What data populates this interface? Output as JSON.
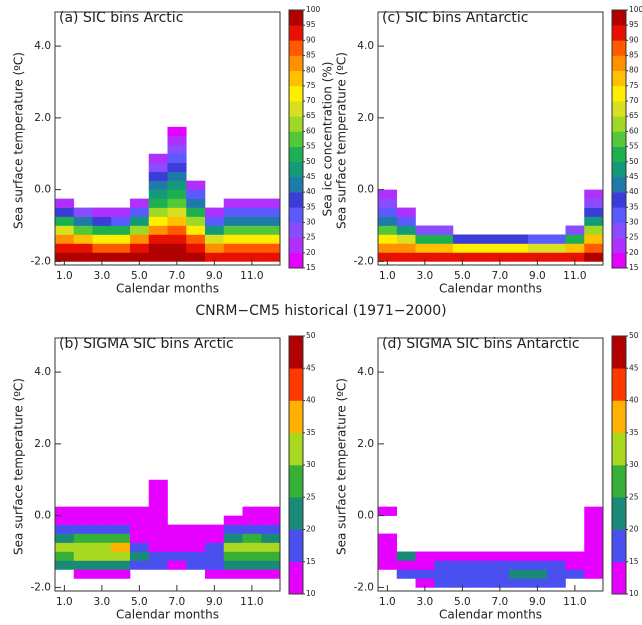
{
  "caption": "CNRM−CM5 historical (1971−2000)",
  "chart_data": [
    {
      "type": "heatmap",
      "title": "(a) SIC bins Arctic",
      "xlabel": "Calendar months",
      "ylabel": "Sea surface temperature (ºC)",
      "x": [
        1,
        2,
        3,
        4,
        5,
        6,
        7,
        8,
        9,
        10,
        11,
        12
      ],
      "y_bins": [
        -2,
        -1.75,
        -1.5,
        -1.25,
        -1,
        -0.75,
        -0.5,
        -0.25,
        0,
        0.25,
        0.5,
        0.75,
        1,
        1.25,
        1.5,
        1.75
      ],
      "values": [
        [
          95,
          90,
          80,
          65,
          50,
          35,
          20,
          null,
          null,
          null,
          null,
          null,
          null,
          null,
          null
        ],
        [
          95,
          90,
          75,
          55,
          40,
          25,
          null,
          null,
          null,
          null,
          null,
          null,
          null,
          null,
          null
        ],
        [
          95,
          85,
          70,
          50,
          35,
          20,
          null,
          null,
          null,
          null,
          null,
          null,
          null,
          null,
          null
        ],
        [
          95,
          85,
          70,
          50,
          30,
          20,
          null,
          null,
          null,
          null,
          null,
          null,
          null,
          null,
          null
        ],
        [
          95,
          90,
          80,
          60,
          45,
          30,
          20,
          null,
          null,
          null,
          null,
          null,
          null,
          null,
          null
        ],
        [
          95,
          95,
          90,
          80,
          70,
          60,
          50,
          45,
          40,
          35,
          25,
          20,
          null,
          null,
          null
        ],
        [
          95,
          95,
          90,
          85,
          75,
          65,
          55,
          50,
          45,
          40,
          35,
          30,
          25,
          20,
          15
        ],
        [
          95,
          90,
          85,
          70,
          60,
          50,
          40,
          30,
          20,
          null,
          null,
          null,
          null,
          null,
          null
        ],
        [
          90,
          80,
          65,
          45,
          30,
          20,
          null,
          null,
          null,
          null,
          null,
          null,
          null,
          null,
          null
        ],
        [
          90,
          85,
          70,
          55,
          40,
          30,
          20,
          null,
          null,
          null,
          null,
          null,
          null,
          null,
          null
        ],
        [
          90,
          85,
          70,
          55,
          40,
          30,
          20,
          null,
          null,
          null,
          null,
          null,
          null,
          null,
          null
        ],
        [
          90,
          85,
          70,
          55,
          40,
          30,
          20,
          null,
          null,
          null,
          null,
          null,
          null,
          null,
          null
        ]
      ],
      "xlim": [
        0.5,
        12.5
      ],
      "ylim": [
        -2.1,
        4.95
      ],
      "xticks": [
        {
          "value": 1,
          "label": "1.0"
        },
        {
          "value": 3,
          "label": "3.0"
        },
        {
          "value": 5,
          "label": "5.0"
        },
        {
          "value": 7,
          "label": "7.0"
        },
        {
          "value": 9,
          "label": "9.0"
        },
        {
          "value": 11,
          "label": "11.0"
        }
      ],
      "yticks": [
        {
          "value": -2,
          "label": "-2.0"
        },
        {
          "value": 0,
          "label": "0.0"
        },
        {
          "value": 2,
          "label": "2.0"
        },
        {
          "value": 4,
          "label": "4.0"
        }
      ],
      "colorbar": {
        "label": "Sea ice concentration (%)",
        "ticks": [
          15,
          20,
          25,
          30,
          35,
          40,
          45,
          50,
          55,
          60,
          65,
          70,
          75,
          80,
          85,
          90,
          95,
          100
        ],
        "colors": [
          "#e600ff",
          "#b030ff",
          "#8a4cff",
          "#5a5aff",
          "#3c3cd8",
          "#1e7aa8",
          "#139a7a",
          "#1cb050",
          "#55c83a",
          "#a0d828",
          "#d8e020",
          "#ffee00",
          "#ffc000",
          "#ff9000",
          "#ff5a00",
          "#e81000",
          "#b00000"
        ]
      }
    },
    {
      "type": "heatmap",
      "title": "(b) SIGMA SIC bins Arctic",
      "xlabel": "Calendar months",
      "ylabel": "Sea surface temperature (ºC)",
      "x": [
        1,
        2,
        3,
        4,
        5,
        6,
        7,
        8,
        9,
        10,
        11,
        12
      ],
      "y_bins": [
        -2,
        -1.75,
        -1.5,
        -1.25,
        -1,
        -0.75,
        -0.5,
        -0.25,
        0,
        0.25,
        0.5,
        0.75,
        1
      ],
      "values": [
        [
          null,
          null,
          20,
          25,
          32,
          20,
          15,
          12,
          12,
          null,
          null,
          null
        ],
        [
          null,
          12,
          20,
          30,
          32,
          25,
          15,
          12,
          12,
          null,
          null,
          null
        ],
        [
          null,
          12,
          20,
          32,
          34,
          28,
          15,
          12,
          12,
          null,
          null,
          null
        ],
        [
          null,
          12,
          20,
          30,
          36,
          25,
          15,
          12,
          12,
          null,
          null,
          null
        ],
        [
          null,
          null,
          15,
          20,
          15,
          12,
          12,
          12,
          12,
          null,
          null,
          null
        ],
        [
          null,
          null,
          15,
          15,
          12,
          12,
          12,
          12,
          12,
          12,
          12,
          12
        ],
        [
          null,
          null,
          12,
          15,
          12,
          12,
          12,
          null,
          null,
          null,
          null,
          null
        ],
        [
          null,
          null,
          15,
          15,
          12,
          12,
          12,
          null,
          null,
          null,
          null,
          null
        ],
        [
          null,
          12,
          15,
          15,
          15,
          12,
          12,
          null,
          null,
          null,
          null,
          null
        ],
        [
          null,
          12,
          20,
          28,
          30,
          20,
          15,
          12,
          null,
          null,
          null,
          null
        ],
        [
          null,
          12,
          20,
          28,
          32,
          25,
          15,
          12,
          12,
          null,
          null,
          null
        ],
        [
          null,
          12,
          20,
          25,
          30,
          20,
          15,
          12,
          12,
          null,
          null,
          null
        ]
      ],
      "xlim": [
        0.5,
        12.5
      ],
      "ylim": [
        -2.1,
        4.95
      ],
      "xticks": [
        {
          "value": 1,
          "label": "1.0"
        },
        {
          "value": 3,
          "label": "3.0"
        },
        {
          "value": 5,
          "label": "5.0"
        },
        {
          "value": 7,
          "label": "7.0"
        },
        {
          "value": 9,
          "label": "9.0"
        },
        {
          "value": 11,
          "label": "11.0"
        }
      ],
      "yticks": [
        {
          "value": -2,
          "label": "-2.0"
        },
        {
          "value": 0,
          "label": "0.0"
        },
        {
          "value": 2,
          "label": "2.0"
        },
        {
          "value": 4,
          "label": "4.0"
        }
      ],
      "colorbar": {
        "ticks": [
          10,
          15,
          20,
          25,
          30,
          35,
          40,
          45,
          50
        ],
        "colors": [
          "#e600ff",
          "#4a50f0",
          "#1a8a78",
          "#36b036",
          "#a8d820",
          "#ffb000",
          "#ff3800",
          "#b00000"
        ]
      }
    },
    {
      "type": "heatmap",
      "title": "(c) SIC bins Antarctic",
      "xlabel": "Calendar months",
      "ylabel": "Sea surface temperature (ºC)",
      "x": [
        1,
        2,
        3,
        4,
        5,
        6,
        7,
        8,
        9,
        10,
        11,
        12
      ],
      "y_bins": [
        -2,
        -1.75,
        -1.5,
        -1.25,
        -1,
        -0.75,
        -0.5,
        -0.25,
        0
      ],
      "values": [
        [
          90,
          80,
          70,
          55,
          40,
          30,
          25,
          20
        ],
        [
          90,
          80,
          65,
          45,
          30,
          20,
          null,
          null
        ],
        [
          90,
          75,
          50,
          25,
          null,
          null,
          null,
          null
        ],
        [
          90,
          75,
          50,
          25,
          null,
          null,
          null,
          null
        ],
        [
          90,
          70,
          35,
          null,
          null,
          null,
          null,
          null
        ],
        [
          90,
          70,
          35,
          null,
          null,
          null,
          null,
          null
        ],
        [
          90,
          70,
          35,
          null,
          null,
          null,
          null,
          null
        ],
        [
          90,
          70,
          35,
          null,
          null,
          null,
          null,
          null
        ],
        [
          90,
          65,
          30,
          null,
          null,
          null,
          null,
          null
        ],
        [
          90,
          65,
          30,
          null,
          null,
          null,
          null,
          null
        ],
        [
          90,
          75,
          50,
          25,
          null,
          null,
          null,
          null
        ],
        [
          95,
          85,
          75,
          60,
          45,
          35,
          25,
          20
        ]
      ],
      "xlim": [
        0.5,
        12.5
      ],
      "ylim": [
        -2.1,
        4.95
      ],
      "xticks": [
        {
          "value": 1,
          "label": "1.0"
        },
        {
          "value": 3,
          "label": "3.0"
        },
        {
          "value": 5,
          "label": "5.0"
        },
        {
          "value": 7,
          "label": "7.0"
        },
        {
          "value": 9,
          "label": "9.0"
        },
        {
          "value": 11,
          "label": "11.0"
        }
      ],
      "yticks": [
        {
          "value": -2,
          "label": "-2.0"
        },
        {
          "value": 0,
          "label": "0.0"
        },
        {
          "value": 2,
          "label": "2.0"
        },
        {
          "value": 4,
          "label": "4.0"
        }
      ],
      "colorbar": {
        "ticks": [
          15,
          20,
          25,
          30,
          35,
          40,
          45,
          50,
          55,
          60,
          65,
          70,
          75,
          80,
          85,
          90,
          95,
          100
        ],
        "colors": [
          "#e600ff",
          "#b030ff",
          "#8a4cff",
          "#5a5aff",
          "#3c3cd8",
          "#1e7aa8",
          "#139a7a",
          "#1cb050",
          "#55c83a",
          "#a0d828",
          "#d8e020",
          "#ffee00",
          "#ffc000",
          "#ff9000",
          "#ff5a00",
          "#e81000",
          "#b00000"
        ]
      }
    },
    {
      "type": "heatmap",
      "title": "(d) SIGMA SIC bins Antarctic",
      "xlabel": "Calendar months",
      "ylabel": "Sea surface temperature (ºC)",
      "x": [
        1,
        2,
        3,
        4,
        5,
        6,
        7,
        8,
        9,
        10,
        11,
        12
      ],
      "y_bins": [
        -2,
        -1.75,
        -1.5,
        -1.25,
        -1,
        -0.75,
        -0.5,
        -0.25,
        0,
        0.25
      ],
      "values": [
        [
          null,
          null,
          12,
          12,
          12,
          12,
          null,
          null,
          12
        ],
        [
          null,
          15,
          12,
          22,
          null,
          null,
          null,
          null,
          null
        ],
        [
          12,
          15,
          12,
          12,
          null,
          null,
          null,
          null,
          null
        ],
        [
          15,
          15,
          15,
          12,
          null,
          null,
          null,
          null,
          null
        ],
        [
          15,
          15,
          15,
          12,
          null,
          null,
          null,
          null,
          null
        ],
        [
          15,
          15,
          15,
          12,
          null,
          null,
          null,
          null,
          null
        ],
        [
          15,
          15,
          15,
          12,
          null,
          null,
          null,
          null,
          null
        ],
        [
          15,
          22,
          15,
          12,
          null,
          null,
          null,
          null,
          null
        ],
        [
          15,
          22,
          15,
          12,
          null,
          null,
          null,
          null,
          null
        ],
        [
          15,
          15,
          15,
          12,
          null,
          null,
          null,
          null,
          null
        ],
        [
          null,
          15,
          12,
          12,
          null,
          null,
          null,
          null,
          null
        ],
        [
          null,
          12,
          12,
          12,
          12,
          12,
          12,
          12,
          12
        ]
      ],
      "xlim": [
        0.5,
        12.5
      ],
      "ylim": [
        -2.1,
        4.95
      ],
      "xticks": [
        {
          "value": 1,
          "label": "1.0"
        },
        {
          "value": 3,
          "label": "3.0"
        },
        {
          "value": 5,
          "label": "5.0"
        },
        {
          "value": 7,
          "label": "7.0"
        },
        {
          "value": 9,
          "label": "9.0"
        },
        {
          "value": 11,
          "label": "11.0"
        }
      ],
      "yticks": [
        {
          "value": -2,
          "label": "-2.0"
        },
        {
          "value": 0,
          "label": "0.0"
        },
        {
          "value": 2,
          "label": "2.0"
        },
        {
          "value": 4,
          "label": "4.0"
        }
      ],
      "colorbar": {
        "ticks": [
          10,
          15,
          20,
          25,
          30,
          35,
          40,
          45,
          50
        ],
        "colors": [
          "#e600ff",
          "#4a50f0",
          "#1a8a78",
          "#36b036",
          "#a8d820",
          "#ffb000",
          "#ff3800",
          "#b00000"
        ]
      }
    }
  ]
}
